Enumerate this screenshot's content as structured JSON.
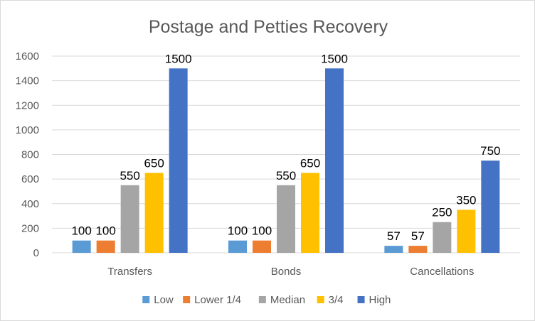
{
  "chart_data": {
    "type": "bar",
    "title": "Postage and Petties Recovery",
    "xlabel": "",
    "ylabel": "",
    "ylim": [
      0,
      1600
    ],
    "yticks": [
      0,
      200,
      400,
      600,
      800,
      1000,
      1200,
      1400,
      1600
    ],
    "grid": true,
    "legend_position": "bottom",
    "categories": [
      "Transfers",
      "Bonds",
      "Cancellations"
    ],
    "series": [
      {
        "name": "Low",
        "color": "#5b9bd5",
        "values": [
          100,
          100,
          57
        ]
      },
      {
        "name": "Lower 1/4",
        "color": "#ed7d31",
        "values": [
          100,
          100,
          57
        ]
      },
      {
        "name": "Median",
        "color": "#a5a5a5",
        "values": [
          550,
          550,
          250
        ]
      },
      {
        "name": "3/4",
        "color": "#ffc000",
        "values": [
          650,
          650,
          350
        ]
      },
      {
        "name": "High",
        "color": "#4472c4",
        "values": [
          1500,
          1500,
          750
        ]
      }
    ]
  }
}
